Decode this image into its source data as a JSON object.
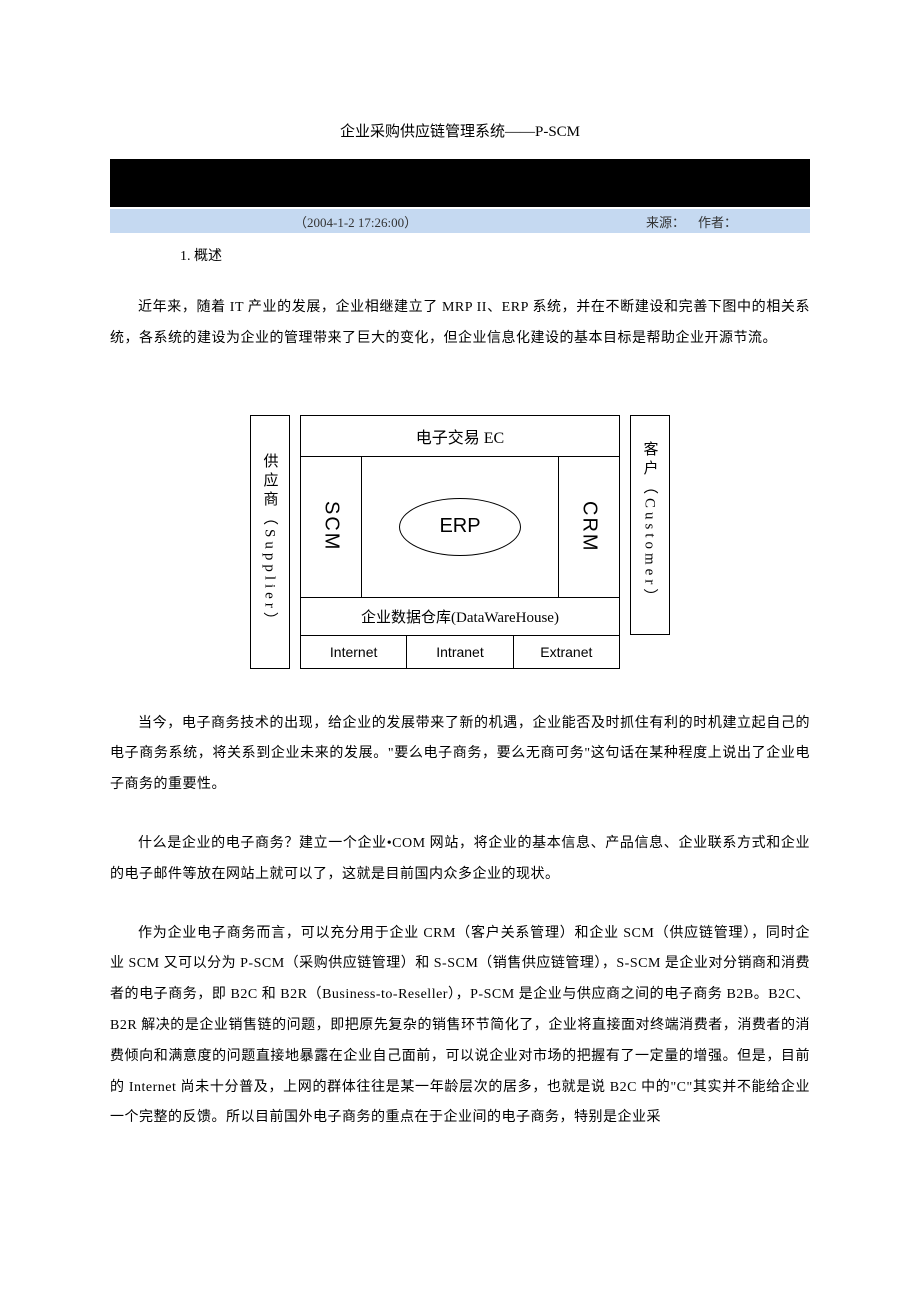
{
  "title": "企业采购供应链管理系统——P-SCM",
  "meta": {
    "date": "（2004-1-2 17:26:00）",
    "source_label": "来源：",
    "author_label": "作者："
  },
  "section": "1. 概述",
  "para1": "近年来，随着 IT 产业的发展，企业相继建立了 MRP II、ERP 系统，并在不断建设和完善下图中的相关系统，各系统的建设为企业的管理带来了巨大的变化，但企业信息化建设的基本目标是帮助企业开源节流。",
  "diagram": {
    "supplier": "供应商（Supplier）",
    "customer": "客户（Customer）",
    "ec": "电子交易 EC",
    "scm": "SCM",
    "erp": "ERP",
    "crm": "CRM",
    "dw": "企业数据仓库(DataWareHouse)",
    "net": [
      "Internet",
      "Intranet",
      "Extranet"
    ]
  },
  "para2": "当今，电子商务技术的出现，给企业的发展带来了新的机遇，企业能否及时抓住有利的时机建立起自己的电子商务系统，将关系到企业未来的发展。\"要么电子商务，要么无商可务\"这句话在某种程度上说出了企业电子商务的重要性。",
  "para3": "什么是企业的电子商务？建立一个企业•COM 网站，将企业的基本信息、产品信息、企业联系方式和企业的电子邮件等放在网站上就可以了，这就是目前国内众多企业的现状。",
  "para4": "作为企业电子商务而言，可以充分用于企业 CRM（客户关系管理）和企业 SCM（供应链管理），同时企业 SCM 又可以分为 P-SCM（采购供应链管理）和 S-SCM（销售供应链管理），S-SCM 是企业对分销商和消费者的电子商务，即 B2C 和 B2R（Business-to-Reseller），P-SCM 是企业与供应商之间的电子商务 B2B。B2C、B2R 解决的是企业销售链的问题，即把原先复杂的销售环节简化了，企业将直接面对终端消费者，消费者的消费倾向和满意度的问题直接地暴露在企业自己面前，可以说企业对市场的把握有了一定量的增强。但是，目前的 Internet 尚未十分普及，上网的群体往往是某一年龄层次的居多，也就是说 B2C 中的\"C\"其实并不能给企业一个完整的反馈。所以目前国外电子商务的重点在于企业间的电子商务，特别是企业采",
  "colors": {
    "meta_bg": "#c5d9f1",
    "black": "#000000",
    "text": "#000000",
    "page_bg": "#ffffff"
  }
}
